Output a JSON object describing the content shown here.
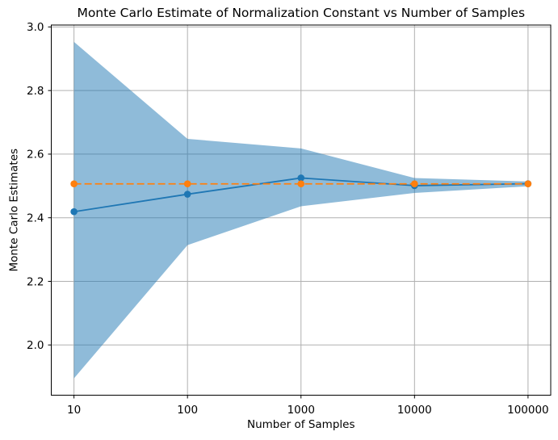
{
  "figure": {
    "title": "Monte Carlo Estimate of Normalization Constant vs Number of Samples",
    "xlabel": "Number of Samples",
    "ylabel": "Monte Carlo Estimates"
  },
  "chart_data": {
    "type": "line",
    "title": "Monte Carlo Estimate of Normalization Constant vs Number of Samples",
    "xlabel": "Number of Samples",
    "ylabel": "Monte Carlo Estimates",
    "x_scale": "log",
    "x": [
      10,
      100,
      1000,
      10000,
      100000
    ],
    "xtick_labels": [
      "10",
      "100",
      "1000",
      "10000",
      "100000"
    ],
    "yticks": [
      2.0,
      2.2,
      2.4,
      2.6,
      2.8,
      3.0
    ],
    "ytick_labels": [
      "2.0",
      "2.2",
      "2.4",
      "2.6",
      "2.8",
      "3.0"
    ],
    "xlim_log10": [
      0.8,
      5.2
    ],
    "ylim": [
      1.842,
      3.006
    ],
    "grid": true,
    "legend": "none",
    "series": [
      {
        "name": "monte-carlo-estimate",
        "values": [
          2.419,
          2.474,
          2.525,
          2.501,
          2.507
        ],
        "color": "#1f77b4",
        "line_style": "solid",
        "marker": "circle"
      },
      {
        "name": "true-value",
        "values": [
          2.5066,
          2.5066,
          2.5066,
          2.5066,
          2.5066
        ],
        "color": "#ff7f0e",
        "line_style": "dashed",
        "marker": "circle"
      }
    ],
    "confidence_band": {
      "lower": [
        1.895,
        2.314,
        2.436,
        2.478,
        2.499
      ],
      "upper": [
        2.953,
        2.648,
        2.618,
        2.525,
        2.514
      ],
      "color": "#1f77b4",
      "opacity": 0.5
    },
    "colors": {
      "grid": "#b0b0b0",
      "axis": "#000000",
      "text": "#000000",
      "background": "#ffffff"
    }
  }
}
